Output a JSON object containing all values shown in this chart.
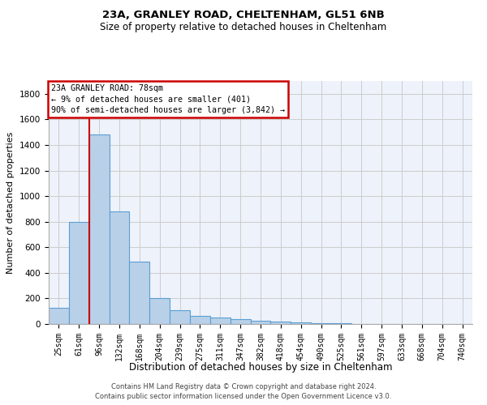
{
  "title1": "23A, GRANLEY ROAD, CHELTENHAM, GL51 6NB",
  "title2": "Size of property relative to detached houses in Cheltenham",
  "xlabel": "Distribution of detached houses by size in Cheltenham",
  "ylabel": "Number of detached properties",
  "categories": [
    "25sqm",
    "61sqm",
    "96sqm",
    "132sqm",
    "168sqm",
    "204sqm",
    "239sqm",
    "275sqm",
    "311sqm",
    "347sqm",
    "382sqm",
    "418sqm",
    "454sqm",
    "490sqm",
    "525sqm",
    "561sqm",
    "597sqm",
    "633sqm",
    "668sqm",
    "704sqm",
    "740sqm"
  ],
  "values": [
    125,
    800,
    1480,
    880,
    490,
    205,
    105,
    65,
    50,
    38,
    28,
    20,
    15,
    8,
    5,
    3,
    2,
    1,
    1,
    1,
    1
  ],
  "bar_color": "#b8d0e8",
  "bar_edge_color": "#5a9fd4",
  "grid_color": "#cccccc",
  "annotation_box_color": "#cc0000",
  "vline_color": "#cc0000",
  "vline_x": 1.5,
  "annotation_text": "23A GRANLEY ROAD: 78sqm\n← 9% of detached houses are smaller (401)\n90% of semi-detached houses are larger (3,842) →",
  "footer1": "Contains HM Land Registry data © Crown copyright and database right 2024.",
  "footer2": "Contains public sector information licensed under the Open Government Licence v3.0.",
  "ylim": [
    0,
    1900
  ],
  "yticks": [
    0,
    200,
    400,
    600,
    800,
    1000,
    1200,
    1400,
    1600,
    1800
  ],
  "bg_color": "#eef2fa",
  "title1_fontsize": 9.5,
  "title2_fontsize": 8.5
}
